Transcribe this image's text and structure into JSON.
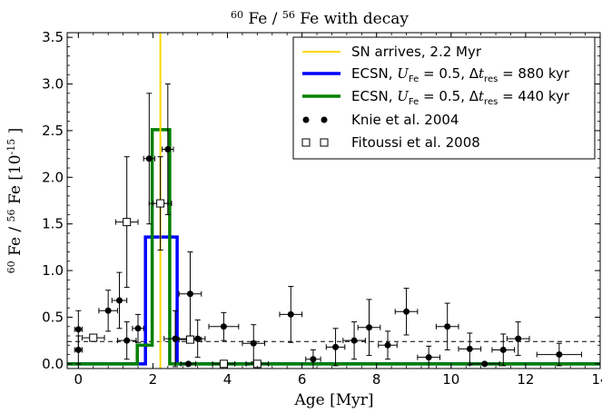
{
  "chart_data": {
    "type": "line",
    "title": {
      "a": "60",
      "b": " Fe / ",
      "c": "56",
      "d": " Fe with decay"
    },
    "xlabel": "Age [Myr]",
    "ylabel": {
      "a": "60",
      "b": " Fe / ",
      "c": "56",
      "d": " Fe [10",
      "e": "-15",
      "f": " ]"
    },
    "xlim": [
      -0.3,
      14
    ],
    "ylim": [
      -0.05,
      3.55
    ],
    "xticks": [
      0,
      2,
      4,
      6,
      8,
      10,
      12,
      14
    ],
    "yticks": [
      0.0,
      0.5,
      1.0,
      1.5,
      2.0,
      2.5,
      3.0,
      3.5
    ],
    "xtick_labels": [
      "0",
      "2",
      "4",
      "6",
      "8",
      "10",
      "12",
      "14"
    ],
    "ytick_labels": [
      "0.0",
      "0.5",
      "1.0",
      "1.5",
      "2.0",
      "2.5",
      "3.0",
      "3.5"
    ],
    "baseline_dashed": 0.24,
    "sn_arrival": {
      "x": 2.2,
      "color": "#ffd700"
    },
    "series": [
      {
        "name": "ECSN, U_Fe = 0.5, Δt_res = 880 kyr",
        "color": "#0000ff",
        "steps": [
          [
            -0.3,
            0
          ],
          [
            1.8,
            0
          ],
          [
            1.8,
            1.36
          ],
          [
            2.65,
            1.36
          ],
          [
            2.65,
            0
          ],
          [
            14,
            0
          ]
        ]
      },
      {
        "name": "ECSN, U_Fe = 0.5, Δt_res = 440 kyr",
        "color": "#008000",
        "steps": [
          [
            -0.3,
            0
          ],
          [
            1.58,
            0
          ],
          [
            1.58,
            0.2
          ],
          [
            1.98,
            0.2
          ],
          [
            1.98,
            2.51
          ],
          [
            2.45,
            2.51
          ],
          [
            2.45,
            0
          ],
          [
            14,
            0
          ]
        ]
      }
    ],
    "knie_2004": [
      {
        "x": 0.0,
        "y": 0.15,
        "xerr": 0.1,
        "yerr": 0.15
      },
      {
        "x": 0.0,
        "y": 0.37,
        "xerr": 0.1,
        "yerr": 0.2
      },
      {
        "x": 0.8,
        "y": 0.57,
        "xerr": 0.25,
        "yerr": 0.22
      },
      {
        "x": 1.1,
        "y": 0.68,
        "xerr": 0.2,
        "yerr": 0.3
      },
      {
        "x": 1.3,
        "y": 0.25,
        "xerr": 0.25,
        "yerr": 0.2
      },
      {
        "x": 1.6,
        "y": 0.38,
        "xerr": 0.15,
        "yerr": 0.15
      },
      {
        "x": 1.9,
        "y": 2.2,
        "xerr": 0.15,
        "yerr": 0.7
      },
      {
        "x": 2.2,
        "y": 1.72,
        "xerr": 0.2,
        "yerr": 0.5
      },
      {
        "x": 2.4,
        "y": 2.3,
        "xerr": 0.15,
        "yerr": 0.7
      },
      {
        "x": 2.6,
        "y": 0.27,
        "xerr": 0.3,
        "yerr": 0.3
      },
      {
        "x": 2.95,
        "y": 0.0,
        "xerr": 0.2,
        "yerr": 0.0
      },
      {
        "x": 3.0,
        "y": 0.75,
        "xerr": 0.3,
        "yerr": 0.45
      },
      {
        "x": 3.2,
        "y": 0.27,
        "xerr": 0.2,
        "yerr": 0.2
      },
      {
        "x": 3.9,
        "y": 0.4,
        "xerr": 0.4,
        "yerr": 0.15
      },
      {
        "x": 4.7,
        "y": 0.22,
        "xerr": 0.3,
        "yerr": 0.2
      },
      {
        "x": 5.7,
        "y": 0.53,
        "xerr": 0.3,
        "yerr": 0.3
      },
      {
        "x": 6.3,
        "y": 0.05,
        "xerr": 0.2,
        "yerr": 0.1
      },
      {
        "x": 6.9,
        "y": 0.18,
        "xerr": 0.25,
        "yerr": 0.2
      },
      {
        "x": 7.4,
        "y": 0.25,
        "xerr": 0.3,
        "yerr": 0.2
      },
      {
        "x": 7.8,
        "y": 0.39,
        "xerr": 0.3,
        "yerr": 0.3
      },
      {
        "x": 8.3,
        "y": 0.2,
        "xerr": 0.25,
        "yerr": 0.15
      },
      {
        "x": 8.8,
        "y": 0.56,
        "xerr": 0.3,
        "yerr": 0.25
      },
      {
        "x": 9.4,
        "y": 0.07,
        "xerr": 0.3,
        "yerr": 0.12
      },
      {
        "x": 9.9,
        "y": 0.4,
        "xerr": 0.3,
        "yerr": 0.25
      },
      {
        "x": 10.5,
        "y": 0.16,
        "xerr": 0.3,
        "yerr": 0.17
      },
      {
        "x": 10.9,
        "y": 0.0,
        "xerr": 0.4,
        "yerr": 0.0
      },
      {
        "x": 11.4,
        "y": 0.15,
        "xerr": 0.3,
        "yerr": 0.17
      },
      {
        "x": 11.8,
        "y": 0.27,
        "xerr": 0.3,
        "yerr": 0.18
      },
      {
        "x": 12.9,
        "y": 0.1,
        "xerr": 0.6,
        "yerr": 0.12
      }
    ],
    "fitoussi_2008": [
      {
        "x": 0.4,
        "y": 0.28,
        "xerr": 0.3,
        "yerr": 0.0
      },
      {
        "x": 1.3,
        "y": 1.52,
        "xerr": 0.3,
        "yerr": 0.7
      },
      {
        "x": 2.2,
        "y": 1.72,
        "xerr": 0.3,
        "yerr": 0.0
      },
      {
        "x": 3.0,
        "y": 0.26,
        "xerr": 0.3,
        "yerr": 0.0
      },
      {
        "x": 3.9,
        "y": 0.0,
        "xerr": 0.3,
        "yerr": 0.0
      },
      {
        "x": 4.8,
        "y": 0.0,
        "xerr": 0.3,
        "yerr": 0.0
      }
    ],
    "legend": {
      "placement": "top-right",
      "sn_label": "SN arrives, 2.2 Myr",
      "ecsn_prefix": "ECSN, ",
      "u_sym": "U",
      "u_sub": "Fe",
      "u_eq": " = 0.5, Δ",
      "t_sym": "t",
      "t_sub": "res",
      "blue_val": " = 880 kyr",
      "green_val": " = 440 kyr",
      "knie_label": "Knie et al. 2004",
      "fitoussi_label": "Fitoussi et al. 2008"
    }
  }
}
